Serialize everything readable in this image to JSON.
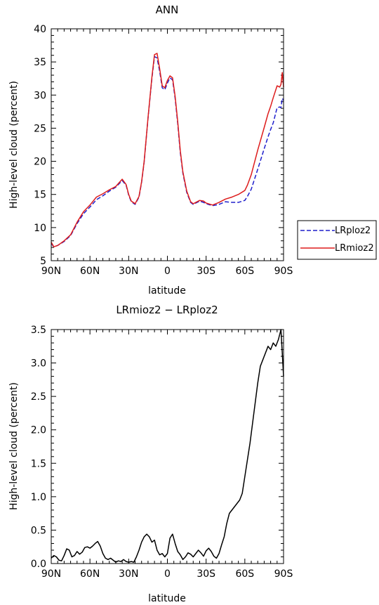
{
  "chart_data": [
    {
      "type": "line",
      "title": "ANN",
      "xlabel": "latitude",
      "ylabel": "High-level cloud (percent)",
      "xlim": [
        90,
        -90
      ],
      "ylim": [
        5,
        40
      ],
      "x_ticks": [
        90,
        60,
        30,
        0,
        -30,
        -60,
        -90
      ],
      "x_tick_labels": [
        "90N",
        "60N",
        "30N",
        "0",
        "30S",
        "60S",
        "90S"
      ],
      "y_ticks": [
        5,
        10,
        15,
        20,
        25,
        30,
        35,
        40
      ],
      "y_tick_labels": [
        "5",
        "10",
        "15",
        "20",
        "25",
        "30",
        "35",
        "40"
      ],
      "legend_position": "right",
      "x": [
        90,
        88,
        85,
        80,
        75,
        70,
        65,
        60,
        55,
        50,
        45,
        40,
        35,
        32,
        30,
        28,
        25,
        22,
        20,
        18,
        15,
        12,
        10,
        8,
        6,
        4,
        2,
        0,
        -2,
        -4,
        -6,
        -8,
        -10,
        -12,
        -15,
        -18,
        -20,
        -22,
        -25,
        -28,
        -30,
        -35,
        -40,
        -45,
        -50,
        -55,
        -60,
        -62,
        -65,
        -70,
        -75,
        -78,
        -80,
        -82,
        -85,
        -87,
        -88,
        -89,
        -90
      ],
      "series": [
        {
          "name": "LRploz2",
          "color": "#1f1fcc",
          "dash": "dashed",
          "values": [
            7.6,
            7.1,
            7.3,
            7.9,
            8.8,
            10.6,
            12.1,
            13.1,
            14.2,
            14.8,
            15.5,
            16.1,
            17.1,
            16.4,
            14.9,
            13.9,
            13.5,
            14.6,
            16.8,
            19.9,
            26.5,
            32.5,
            35.8,
            35.6,
            33.6,
            31.1,
            30.8,
            31.8,
            32.6,
            32.3,
            29.5,
            25.7,
            21.3,
            18.2,
            15.3,
            13.8,
            13.5,
            13.7,
            14.0,
            13.8,
            13.6,
            13.3,
            13.5,
            13.9,
            13.8,
            13.8,
            14.1,
            14.7,
            15.8,
            18.8,
            21.9,
            23.7,
            24.8,
            25.8,
            28.1,
            28.2,
            28.1,
            29.5,
            29.2
          ]
        },
        {
          "name": "LRmioz2",
          "color": "#dd1c1c",
          "dash": "solid",
          "values": [
            7.8,
            7.1,
            7.3,
            8.0,
            8.9,
            10.8,
            12.4,
            13.4,
            14.6,
            15.1,
            15.7,
            16.2,
            17.3,
            16.5,
            15.0,
            14.0,
            13.6,
            14.7,
            16.9,
            20.0,
            26.6,
            32.7,
            36.1,
            36.3,
            34.0,
            31.4,
            31.1,
            32.2,
            32.9,
            32.6,
            29.8,
            26.0,
            21.6,
            18.4,
            15.5,
            13.9,
            13.6,
            13.8,
            14.1,
            14.0,
            13.7,
            13.4,
            13.8,
            14.3,
            14.6,
            15.0,
            15.6,
            16.4,
            18.0,
            21.7,
            25.1,
            27.2,
            28.3,
            29.6,
            31.4,
            31.2,
            31.6,
            33.4,
            31.2
          ]
        }
      ]
    },
    {
      "type": "line",
      "title": "LRmioz2 − LRploz2",
      "xlabel": "latitude",
      "ylabel": "High-level cloud (percent)",
      "xlim": [
        90,
        -90
      ],
      "ylim": [
        0.0,
        3.5
      ],
      "x_ticks": [
        90,
        60,
        30,
        0,
        -30,
        -60,
        -90
      ],
      "x_tick_labels": [
        "90N",
        "60N",
        "30N",
        "0",
        "30S",
        "60S",
        "90S"
      ],
      "y_ticks": [
        0.0,
        0.5,
        1.0,
        1.5,
        2.0,
        2.5,
        3.0,
        3.5
      ],
      "y_tick_labels": [
        "0.0",
        "0.5",
        "1.0",
        "1.5",
        "2.0",
        "2.5",
        "3.0",
        "3.5"
      ],
      "x": [
        90,
        88,
        86,
        84,
        82,
        80,
        78,
        76,
        74,
        72,
        70,
        68,
        66,
        64,
        62,
        60,
        58,
        56,
        54,
        52,
        50,
        48,
        46,
        44,
        42,
        40,
        38,
        36,
        34,
        32,
        30,
        28,
        26,
        24,
        22,
        20,
        18,
        16,
        14,
        12,
        10,
        8,
        6,
        4,
        2,
        0,
        -2,
        -4,
        -6,
        -8,
        -10,
        -12,
        -14,
        -16,
        -18,
        -20,
        -22,
        -24,
        -26,
        -28,
        -30,
        -32,
        -34,
        -36,
        -38,
        -40,
        -42,
        -44,
        -46,
        -48,
        -50,
        -52,
        -54,
        -56,
        -58,
        -60,
        -62,
        -64,
        -66,
        -68,
        -70,
        -72,
        -74,
        -76,
        -78,
        -80,
        -82,
        -84,
        -86,
        -88,
        -90
      ],
      "series": [
        {
          "name": "",
          "color": "#000000",
          "dash": "solid",
          "values": [
            0.08,
            0.12,
            0.1,
            0.05,
            0.04,
            0.12,
            0.22,
            0.2,
            0.1,
            0.12,
            0.18,
            0.14,
            0.17,
            0.24,
            0.25,
            0.23,
            0.26,
            0.3,
            0.33,
            0.26,
            0.15,
            0.08,
            0.06,
            0.08,
            0.05,
            0.02,
            0.04,
            0.03,
            0.06,
            0.03,
            0.02,
            0.03,
            0.02,
            0.1,
            0.2,
            0.32,
            0.4,
            0.44,
            0.4,
            0.32,
            0.35,
            0.2,
            0.13,
            0.15,
            0.1,
            0.15,
            0.38,
            0.44,
            0.3,
            0.18,
            0.13,
            0.06,
            0.1,
            0.16,
            0.14,
            0.1,
            0.15,
            0.2,
            0.16,
            0.11,
            0.19,
            0.23,
            0.18,
            0.11,
            0.08,
            0.15,
            0.28,
            0.4,
            0.6,
            0.75,
            0.8,
            0.85,
            0.9,
            0.95,
            1.05,
            1.3,
            1.55,
            1.8,
            2.1,
            2.4,
            2.7,
            2.95,
            3.05,
            3.15,
            3.25,
            3.2,
            3.3,
            3.25,
            3.35,
            3.5,
            2.8
          ]
        }
      ]
    }
  ]
}
